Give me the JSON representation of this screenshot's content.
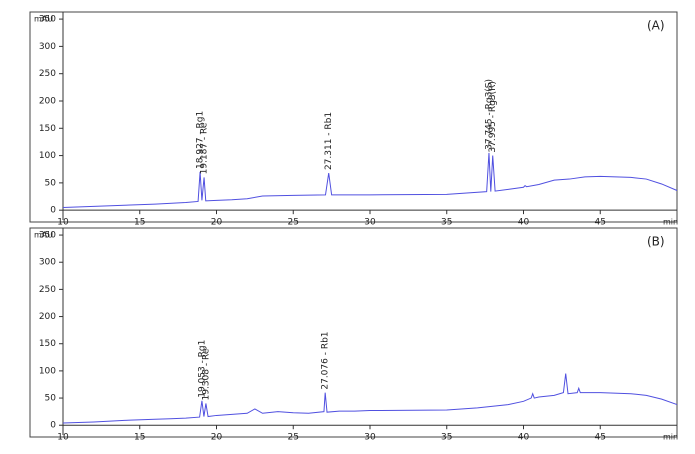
{
  "chart_data": [
    {
      "type": "line",
      "title": "(A)",
      "x_label": "min",
      "y_label": "mAU",
      "xlim": [
        10,
        50
      ],
      "ylim": [
        -18,
        363
      ],
      "xticks": [
        10,
        15,
        20,
        25,
        30,
        35,
        40,
        45
      ],
      "yticks": [
        0,
        50,
        100,
        150,
        200,
        250,
        300,
        350
      ],
      "x": [
        10,
        12,
        14,
        16,
        18,
        18.8,
        18.93,
        19.05,
        19.19,
        19.3,
        20,
        21,
        22,
        23,
        25,
        27.1,
        27.31,
        27.5,
        30,
        35,
        37.6,
        37.75,
        37.87,
        37.995,
        38.15,
        39,
        40,
        40.1,
        40.2,
        41,
        42,
        43,
        44,
        45,
        46,
        47,
        48,
        49,
        50
      ],
      "series": [
        {
          "color": "#5050e0",
          "values": [
            5,
            7,
            9,
            11,
            14,
            16,
            70,
            18,
            60,
            17,
            18,
            19,
            21,
            26,
            27,
            28,
            68,
            28,
            28,
            29,
            34,
            105,
            34,
            100,
            35,
            38,
            42,
            45,
            43,
            47,
            55,
            57,
            61,
            62,
            61,
            60,
            57,
            48,
            36
          ]
        }
      ],
      "annotations": [
        {
          "x": 18.93,
          "y": 70,
          "label": "18.927 - Rg1"
        },
        {
          "x": 19.19,
          "y": 60,
          "label": "19.187 - Re"
        },
        {
          "x": 27.31,
          "y": 68,
          "label": "27.311 - Rb1"
        },
        {
          "x": 37.75,
          "y": 105,
          "label": "37.745 - Rg3(S)"
        },
        {
          "x": 37.995,
          "y": 100,
          "label": "37.995 - Rg3(R)"
        }
      ]
    },
    {
      "type": "line",
      "title": "(B)",
      "x_label": "min",
      "y_label": "mAU",
      "xlim": [
        10,
        50
      ],
      "ylim": [
        -18,
        363
      ],
      "xticks": [
        10,
        15,
        20,
        25,
        30,
        35,
        40,
        45
      ],
      "yticks": [
        0,
        50,
        100,
        150,
        200,
        250,
        300,
        350
      ],
      "x": [
        10,
        12,
        14,
        16,
        17,
        18,
        18.9,
        19.05,
        19.18,
        19.31,
        19.45,
        20,
        21,
        22,
        22.5,
        23,
        24,
        25,
        26,
        27.0,
        27.08,
        27.2,
        28,
        29,
        30,
        35,
        37,
        39,
        40,
        40.5,
        40.6,
        40.7,
        41,
        42,
        42.6,
        42.75,
        42.9,
        43.5,
        43.6,
        43.7,
        45,
        47,
        48,
        49,
        50
      ],
      "series": [
        {
          "color": "#5050e0",
          "values": [
            4,
            6,
            9,
            11,
            12,
            13,
            15,
            45,
            16,
            40,
            16,
            18,
            20,
            22,
            30,
            22,
            25,
            23,
            22,
            25,
            60,
            24,
            26,
            26,
            27,
            28,
            32,
            38,
            44,
            50,
            58,
            50,
            52,
            55,
            60,
            95,
            58,
            60,
            68,
            60,
            60,
            58,
            55,
            48,
            38
          ]
        }
      ],
      "annotations": [
        {
          "x": 19.05,
          "y": 45,
          "label": "19.053 - Rg1"
        },
        {
          "x": 19.31,
          "y": 40,
          "label": "19.308 - Re"
        },
        {
          "x": 27.08,
          "y": 60,
          "label": "27.076 - Rb1"
        }
      ]
    }
  ]
}
